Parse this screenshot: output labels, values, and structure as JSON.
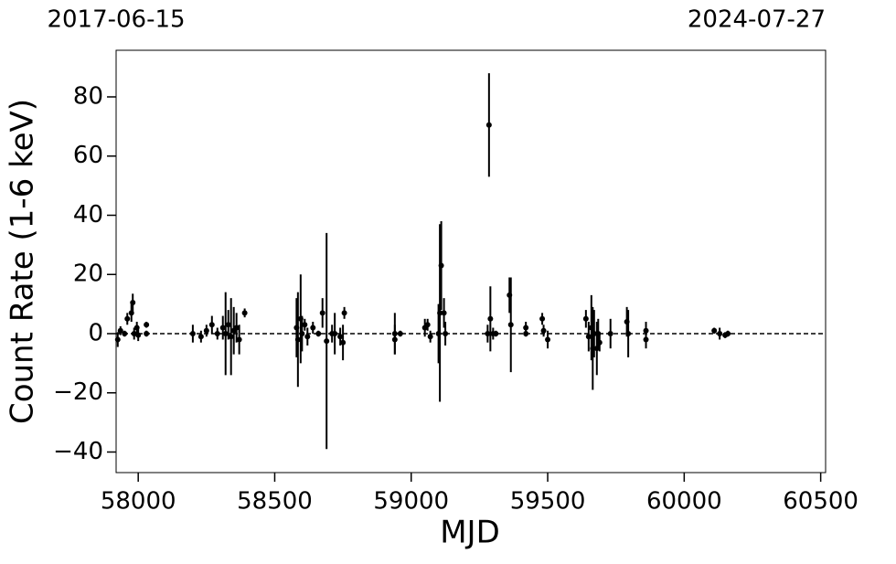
{
  "chart_data": {
    "type": "errorbar-scatter",
    "xlabel": "MJD",
    "ylabel": "Count Rate (1-6 keV)",
    "xlim": [
      57919,
      60518
    ],
    "ylim": [
      -46.95,
      95.75
    ],
    "xticks": [
      58000,
      58500,
      59000,
      59500,
      60000,
      60500
    ],
    "yticks": [
      {
        "value": -40,
        "label": "−40"
      },
      {
        "value": -20,
        "label": "−20"
      },
      0,
      20,
      40,
      60,
      80
    ],
    "top_ticks": [
      {
        "value": 57919,
        "label": "2017-06-15"
      },
      {
        "value": 60518,
        "label": "2024-07-27"
      }
    ],
    "hline": 0,
    "color": "#000000",
    "x": [
      57925,
      57935,
      57950,
      57960,
      57975,
      57980,
      57985,
      57995,
      58000,
      58030,
      58030,
      58200,
      58230,
      58250,
      58270,
      58290,
      58310,
      58320,
      58330,
      58340,
      58350,
      58360,
      58370,
      58390,
      58580,
      58585,
      58595,
      58600,
      58610,
      58620,
      58640,
      58660,
      58675,
      58690,
      58710,
      58720,
      58740,
      58755,
      58750,
      58940,
      58940,
      58960,
      59050,
      59060,
      59070,
      59100,
      59105,
      59110,
      59120,
      59125,
      59280,
      59285,
      59290,
      59300,
      59310,
      59360,
      59365,
      59420,
      59420,
      59480,
      59485,
      59500,
      59640,
      59650,
      59660,
      59665,
      59670,
      59680,
      59685,
      59690,
      59730,
      59790,
      59795,
      59860,
      59860,
      60110,
      60130,
      60150,
      60160
    ],
    "values": [
      -2,
      1,
      0,
      5,
      7,
      10.5,
      0,
      2,
      -0.5,
      3,
      0,
      0,
      -1,
      1,
      3,
      0,
      2,
      0,
      3,
      -1,
      1,
      2,
      -2,
      7,
      2,
      -2,
      5,
      0,
      3,
      -1,
      2,
      0,
      7,
      -2.5,
      0,
      0,
      -1,
      7,
      -3,
      -2,
      0,
      0,
      2,
      3,
      -1,
      0,
      7,
      23,
      7,
      0,
      0,
      70.5,
      5,
      0,
      0,
      13,
      3,
      2,
      0,
      5,
      1,
      -2,
      5,
      -1,
      2,
      -5,
      0,
      -5,
      0,
      -3,
      0,
      4,
      0,
      -2,
      1,
      1,
      0,
      -0.5,
      0
    ],
    "errors": [
      2.5,
      1.5,
      1,
      2,
      3,
      3,
      2,
      2,
      2,
      1,
      1,
      3,
      2,
      2,
      3,
      2,
      4,
      14,
      5,
      13,
      8,
      5,
      5,
      1.5,
      10,
      16,
      15,
      6,
      2,
      3,
      2,
      1,
      5,
      36.5,
      3,
      7,
      3,
      2,
      6,
      5,
      7,
      1,
      3,
      2,
      2,
      10,
      30,
      15,
      5,
      4,
      3,
      17.5,
      11,
      2,
      1,
      6,
      16,
      2,
      1,
      2,
      2,
      3,
      3,
      5,
      11,
      14,
      8,
      9,
      5,
      3,
      5,
      5,
      8,
      3,
      3,
      1,
      2,
      1,
      1
    ]
  }
}
